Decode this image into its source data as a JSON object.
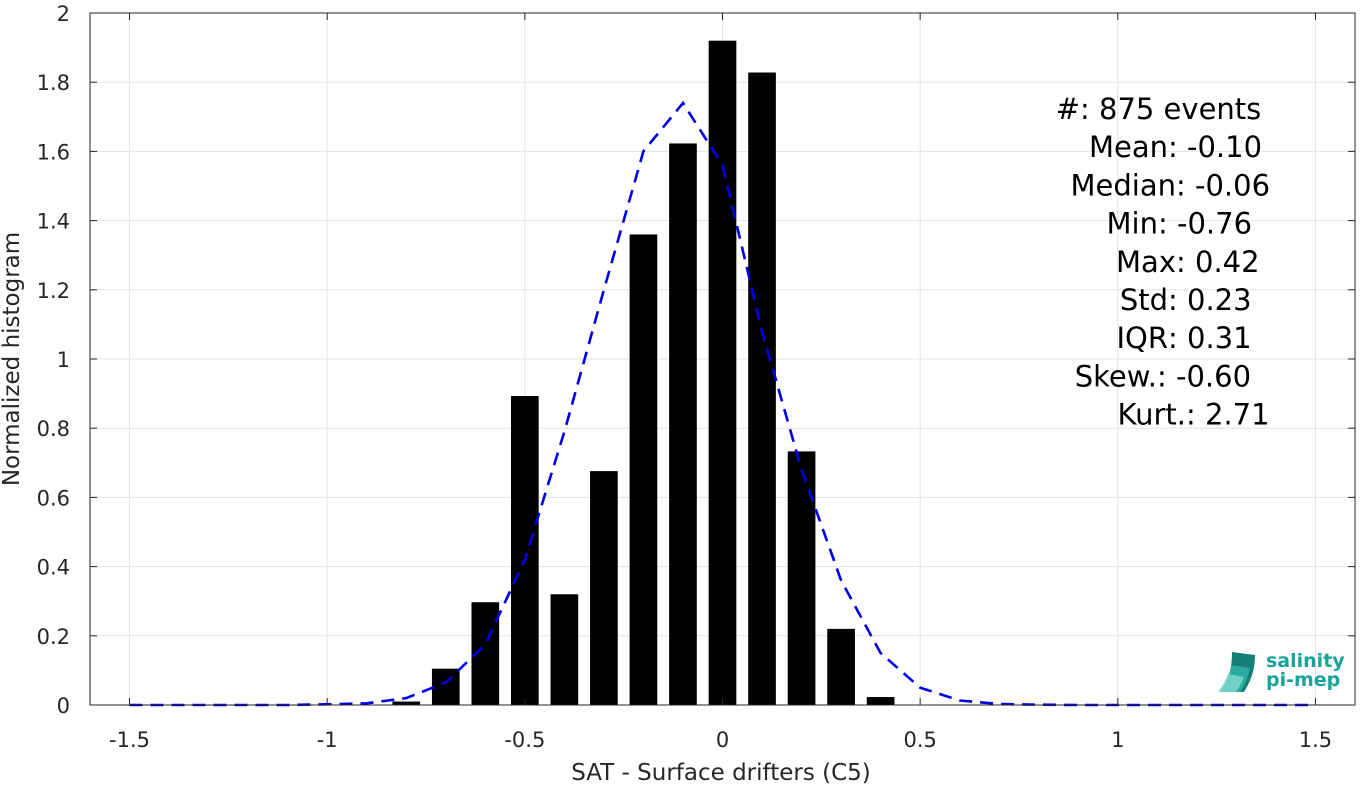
{
  "chart_data": {
    "type": "bar",
    "xlabel": "SAT - Surface drifters (C5)",
    "ylabel": "Normalized histogram",
    "xlim": [
      -1.6,
      1.6
    ],
    "ylim": [
      0,
      2
    ],
    "grid": true,
    "x_ticks": [
      -1.5,
      -1,
      -0.5,
      0,
      0.5,
      1,
      1.5
    ],
    "x_tick_labels": [
      "-1.5",
      "-1",
      "-0.5",
      "0",
      "0.5",
      "1",
      "1.5"
    ],
    "y_ticks": [
      0,
      0.2,
      0.4,
      0.6,
      0.8,
      1,
      1.2,
      1.4,
      1.6,
      1.8,
      2
    ],
    "y_tick_labels": [
      "0",
      "0.2",
      "0.4",
      "0.6",
      "0.8",
      "1",
      "1.2",
      "1.4",
      "1.6",
      "1.8",
      "2"
    ],
    "bar_color": "#000000",
    "bar_width": 0.07,
    "bars": {
      "x": [
        -0.8,
        -0.7,
        -0.6,
        -0.5,
        -0.4,
        -0.3,
        -0.2,
        -0.1,
        0.0,
        0.1,
        0.2,
        0.3,
        0.4
      ],
      "values": [
        0.01,
        0.105,
        0.297,
        0.893,
        0.32,
        0.676,
        1.36,
        1.623,
        1.92,
        1.828,
        0.733,
        0.22,
        0.023
      ]
    },
    "fit_curve": {
      "style": "dashed",
      "color": "#0000e6",
      "x": [
        -1.5,
        -1.4,
        -1.3,
        -1.2,
        -1.1,
        -1.0,
        -0.9,
        -0.8,
        -0.7,
        -0.6,
        -0.5,
        -0.4,
        -0.3,
        -0.2,
        -0.1,
        0.0,
        0.1,
        0.2,
        0.3,
        0.4,
        0.5,
        0.6,
        0.7,
        0.8,
        0.9,
        1.0,
        1.1,
        1.2,
        1.3,
        1.4,
        1.5
      ],
      "y": [
        0,
        0,
        0,
        0,
        0,
        0.002,
        0.005,
        0.02,
        0.065,
        0.175,
        0.42,
        0.79,
        1.2,
        1.6,
        1.74,
        1.56,
        1.08,
        0.68,
        0.36,
        0.15,
        0.05,
        0.013,
        0.003,
        0.001,
        0,
        0,
        0,
        0,
        0,
        0,
        0
      ]
    },
    "annotations": [
      {
        "label": "#  ",
        "value": ": 875 events"
      },
      {
        "label": "Mean ",
        "value": ": -0.10"
      },
      {
        "label": "Median ",
        "value": ": -0.06"
      },
      {
        "label": "Min ",
        "value": ": -0.76"
      },
      {
        "label": "Max ",
        "value": ": 0.42"
      },
      {
        "label": "Std ",
        "value": ": 0.23"
      },
      {
        "label": "IQR ",
        "value": ": 0.31"
      },
      {
        "label": "Skew. ",
        "value": ": -0.60"
      },
      {
        "label": "Kurt. ",
        "value": ": 2.71"
      }
    ]
  },
  "logo": {
    "line1": "salinity",
    "line2": "pi-mep",
    "color": "#1aa39a"
  }
}
